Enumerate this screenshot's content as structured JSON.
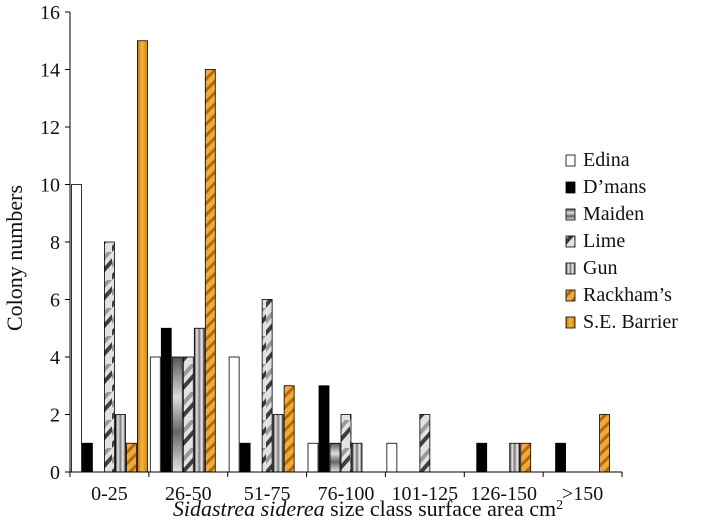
{
  "chart_data": {
    "type": "bar",
    "xlabel_italic": "Sidastrea siderea",
    "xlabel_rest": " size class surface area cm",
    "xlabel_sup": "2",
    "ylabel": "Colony numbers",
    "ylim": [
      0,
      16
    ],
    "yticks": [
      "0",
      "2",
      "4",
      "6",
      "8",
      "10",
      "12",
      "14",
      "16"
    ],
    "grid": false,
    "legend_position": "right",
    "categories": [
      "0-25",
      "26-50",
      "51-75",
      "76-100",
      "101-125",
      "126-150",
      ">150"
    ],
    "series": [
      {
        "name": "Edina",
        "values": [
          10,
          4,
          4,
          1,
          1,
          0,
          0
        ],
        "pattern": "white",
        "color": "#ffffff"
      },
      {
        "name": "D’mans",
        "values": [
          1,
          5,
          1,
          3,
          0,
          1,
          1
        ],
        "pattern": "black",
        "color": "#000000"
      },
      {
        "name": "Maiden",
        "values": [
          0,
          4,
          0,
          1,
          0,
          0,
          0
        ],
        "pattern": "metal-h",
        "color": "#8a8a8a"
      },
      {
        "name": "Lime",
        "values": [
          8,
          4,
          6,
          2,
          2,
          0,
          0
        ],
        "pattern": "metal-d",
        "color": "#9a9a9a"
      },
      {
        "name": "Gun",
        "values": [
          2,
          5,
          2,
          1,
          0,
          1,
          0
        ],
        "pattern": "metal-v",
        "color": "#b0b0b0"
      },
      {
        "name": "Rackham’s",
        "values": [
          1,
          14,
          3,
          0,
          0,
          1,
          2
        ],
        "pattern": "orange-stripe",
        "color": "#e8930c"
      },
      {
        "name": "S.E. Barrier",
        "values": [
          15,
          0,
          0,
          0,
          0,
          0,
          0
        ],
        "pattern": "orange-v",
        "color": "#e8930c"
      }
    ]
  }
}
